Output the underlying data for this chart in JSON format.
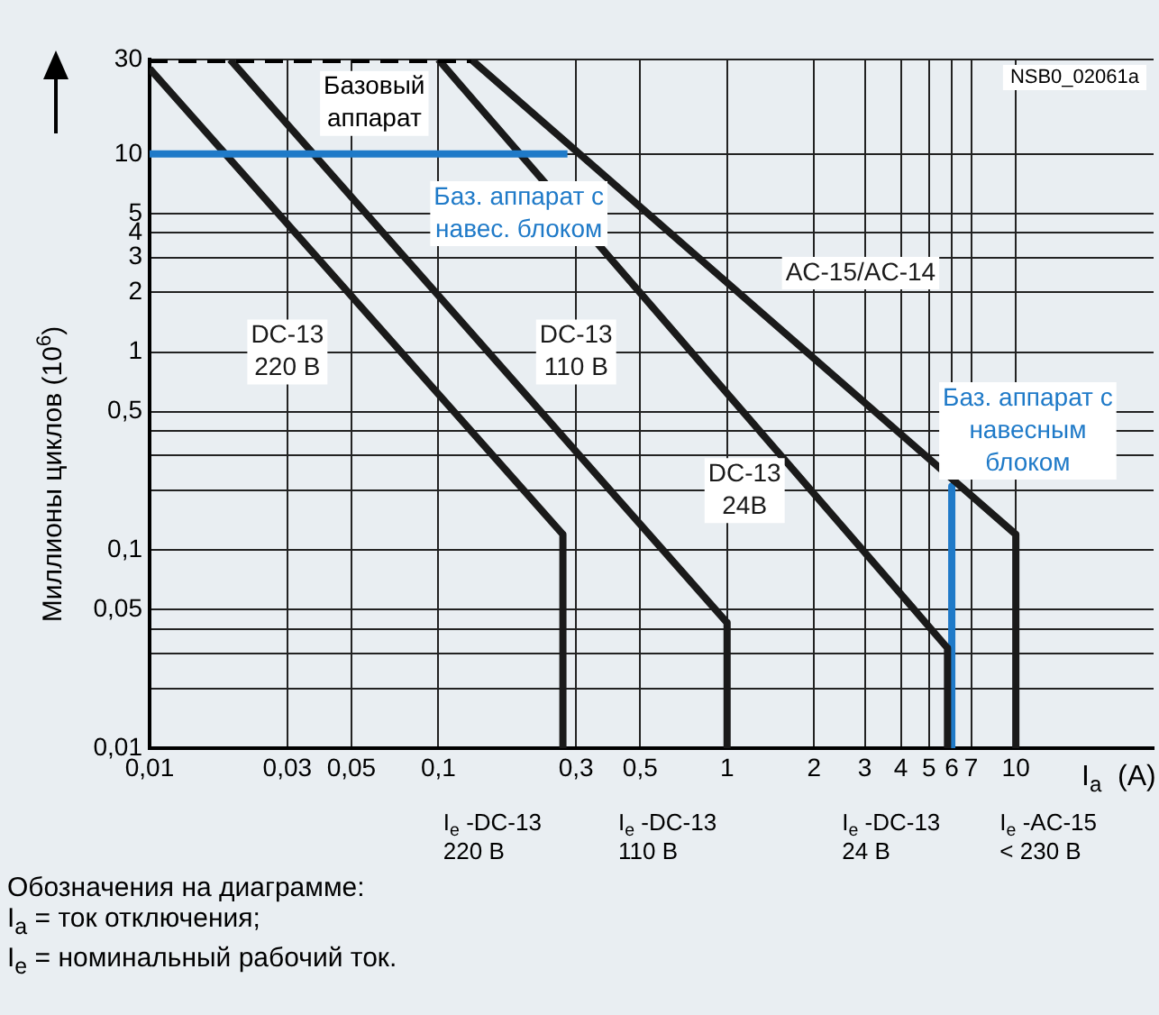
{
  "chart_data": {
    "type": "line",
    "ylabel": "Миллионы циклов (10$^{6}$)",
    "xlabel": "I$_{a}$  (A)",
    "log": "xy",
    "grid": true,
    "legend": false,
    "marker": "none",
    "xlim": [
      0.01,
      30
    ],
    "ylim": [
      0.01,
      30
    ],
    "xticks": [
      {
        "value": 0.01,
        "label": "0,01"
      },
      {
        "value": 0.03,
        "label": "0,03"
      },
      {
        "value": 0.05,
        "label": "0,05"
      },
      {
        "value": 0.1,
        "label": "0,1"
      },
      {
        "value": 0.3,
        "label": "0,3"
      },
      {
        "value": 0.5,
        "label": "0,5"
      },
      1,
      2,
      3,
      4,
      5,
      6,
      7,
      10
    ],
    "yticks": [
      {
        "value": 0.01,
        "label": "0,01"
      },
      {
        "value": 0.02,
        "label": null
      },
      {
        "value": 0.03,
        "label": null
      },
      {
        "value": 0.04,
        "label": null
      },
      {
        "value": 0.05,
        "label": "0,05"
      },
      {
        "value": 0.1,
        "label": "0,1"
      },
      {
        "value": 0.2,
        "label": null
      },
      {
        "value": 0.3,
        "label": null
      },
      {
        "value": 0.4,
        "label": null
      },
      {
        "value": 0.5,
        "label": "0,5"
      },
      1,
      2,
      3,
      4,
      5,
      10,
      30
    ],
    "series": [
      {
        "name": "Базовый аппарат",
        "color": "#000000",
        "line_style": "dashed",
        "x": [
          0.01,
          0.13
        ],
        "values": [
          30,
          30
        ]
      },
      {
        "name": "Баз. аппарат с навес. блоком",
        "color": "#1f7ac8",
        "x": [
          0.01,
          0.28
        ],
        "values": [
          10,
          10
        ]
      },
      {
        "name": "DC-13 220 В",
        "color": "#1a1a1a",
        "x": [
          0.01,
          0.27,
          0.27
        ],
        "values": [
          27,
          0.12,
          0.01
        ]
      },
      {
        "name": "DC-13 110 В",
        "color": "#1a1a1a",
        "x": [
          0.019,
          1,
          1
        ],
        "values": [
          30,
          0.043,
          0.01
        ]
      },
      {
        "name": "DC-13 24B",
        "color": "#1a1a1a",
        "x": [
          0.1,
          5.8,
          5.8
        ],
        "values": [
          30,
          0.032,
          0.01
        ]
      },
      {
        "name": "AC-15/AC-14",
        "color": "#1a1a1a",
        "x": [
          0.13,
          10,
          10
        ],
        "values": [
          30,
          0.12,
          0.01
        ]
      },
      {
        "name": "Баз. аппарат с навесным блоком",
        "color": "#1f7ac8",
        "x": [
          6,
          6
        ],
        "values": [
          0.21,
          0.01
        ]
      }
    ],
    "annotations": [
      "NSB0_02061a",
      "I$_{e}$ -DC-13\n220 В",
      "I$_{e}$ -DC-13\n110 В",
      "I$_{e}$ -DC-13\n24 В",
      "I$_{e}$ -AC-15\n< 230 В",
      "Обозначения на диаграмме:",
      "I$_{a}$ = ток отключения;",
      "I$_{e}$ = номинальный рабочий ток."
    ]
  }
}
